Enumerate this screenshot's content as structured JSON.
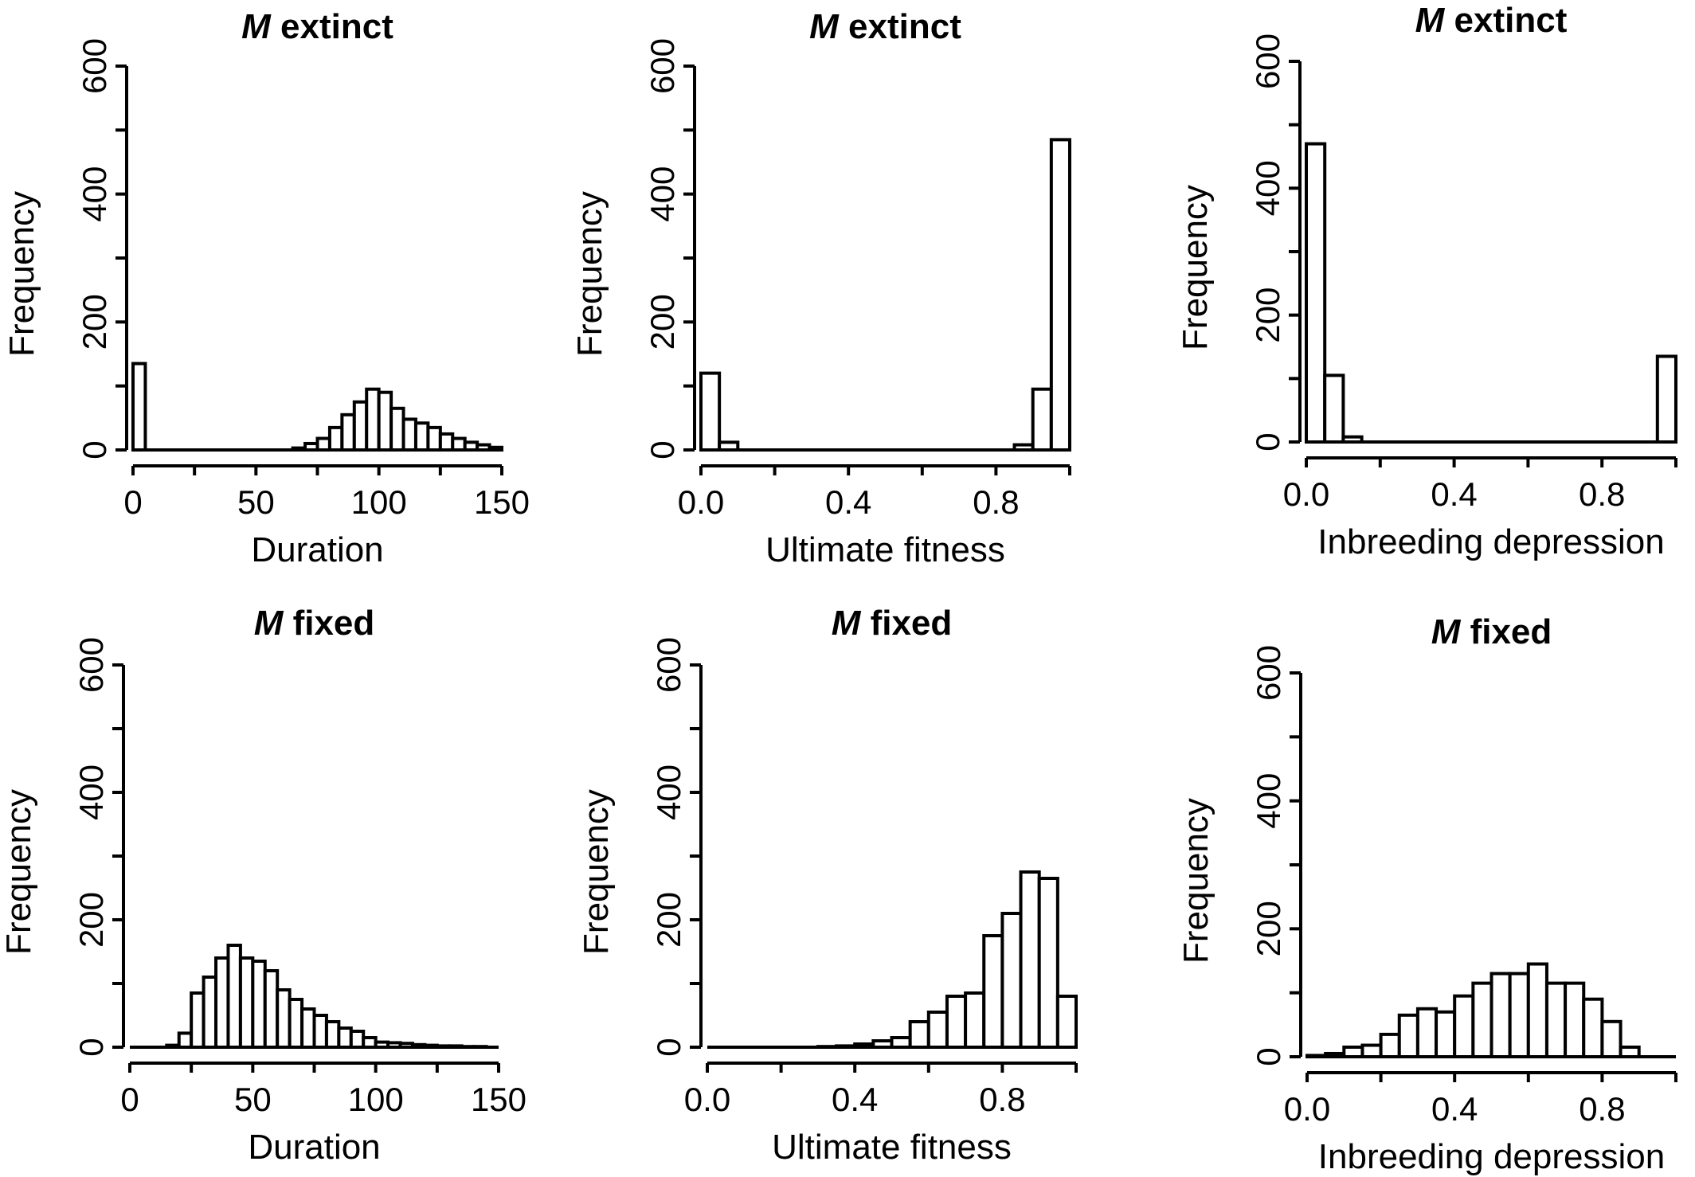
{
  "chart_data": [
    {
      "type": "bar",
      "title_prefix": "M",
      "title_suffix": " extinct",
      "xlabel": "Duration",
      "ylabel": "Frequency",
      "xlim": [
        0,
        150
      ],
      "ylim": [
        0,
        600
      ],
      "xticks": [
        "0",
        "50",
        "100",
        "150"
      ],
      "yticks": [
        "0",
        "200",
        "400",
        "600"
      ],
      "bin_width": 5,
      "values": [
        135,
        0,
        0,
        0,
        0,
        0,
        0,
        0,
        0,
        0,
        0,
        0,
        0,
        3,
        10,
        18,
        35,
        55,
        75,
        95,
        90,
        65,
        48,
        42,
        35,
        25,
        18,
        12,
        8,
        4
      ]
    },
    {
      "type": "bar",
      "title_prefix": "M",
      "title_suffix": " extinct",
      "xlabel": "Ultimate fitness",
      "ylabel": "Frequency",
      "xlim": [
        0,
        1
      ],
      "ylim": [
        0,
        600
      ],
      "xticks": [
        "0.0",
        "0.4",
        "0.8"
      ],
      "yticks": [
        "0",
        "200",
        "400",
        "600"
      ],
      "bin_width": 0.05,
      "values": [
        120,
        12,
        0,
        0,
        0,
        0,
        0,
        0,
        0,
        0,
        0,
        0,
        0,
        0,
        0,
        0,
        0,
        8,
        95,
        485
      ]
    },
    {
      "type": "bar",
      "title_prefix": "M",
      "title_suffix": " extinct",
      "xlabel": "Inbreeding depression",
      "ylabel": "Frequency",
      "xlim": [
        0,
        1
      ],
      "ylim": [
        0,
        600
      ],
      "xticks": [
        "0.0",
        "0.4",
        "0.8"
      ],
      "yticks": [
        "0",
        "200",
        "400",
        "600"
      ],
      "bin_width": 0.05,
      "values": [
        470,
        105,
        8,
        0,
        0,
        0,
        0,
        0,
        0,
        0,
        0,
        0,
        0,
        0,
        0,
        0,
        0,
        0,
        0,
        135
      ]
    },
    {
      "type": "bar",
      "title_prefix": "M",
      "title_suffix": " fixed",
      "xlabel": "Duration",
      "ylabel": "Frequency",
      "xlim": [
        0,
        150
      ],
      "ylim": [
        0,
        600
      ],
      "xticks": [
        "0",
        "50",
        "100",
        "150"
      ],
      "yticks": [
        "0",
        "200",
        "400",
        "600"
      ],
      "bin_width": 5,
      "values": [
        0,
        0,
        0,
        3,
        22,
        85,
        110,
        140,
        160,
        140,
        135,
        120,
        90,
        75,
        60,
        50,
        40,
        30,
        25,
        15,
        8,
        7,
        6,
        4,
        3,
        2,
        2,
        1,
        1,
        0
      ]
    },
    {
      "type": "bar",
      "title_prefix": "M",
      "title_suffix": " fixed",
      "xlabel": "Ultimate fitness",
      "ylabel": "Frequency",
      "xlim": [
        0,
        1
      ],
      "ylim": [
        0,
        600
      ],
      "xticks": [
        "0.0",
        "0.4",
        "0.8"
      ],
      "yticks": [
        "0",
        "200",
        "400",
        "600"
      ],
      "bin_width": 0.05,
      "values": [
        0,
        0,
        0,
        0,
        0,
        0,
        1,
        2,
        5,
        10,
        15,
        40,
        55,
        80,
        85,
        175,
        210,
        275,
        265,
        80
      ]
    },
    {
      "type": "bar",
      "title_prefix": "M",
      "title_suffix": " fixed",
      "xlabel": "Inbreeding depression",
      "ylabel": "Frequency",
      "xlim": [
        0,
        1
      ],
      "ylim": [
        0,
        600
      ],
      "xticks": [
        "0.0",
        "0.4",
        "0.8"
      ],
      "yticks": [
        "0",
        "200",
        "400",
        "600"
      ],
      "bin_width": 0.05,
      "values": [
        2,
        5,
        15,
        18,
        35,
        65,
        75,
        70,
        95,
        115,
        130,
        130,
        145,
        115,
        115,
        90,
        55,
        15,
        0,
        0
      ]
    }
  ]
}
